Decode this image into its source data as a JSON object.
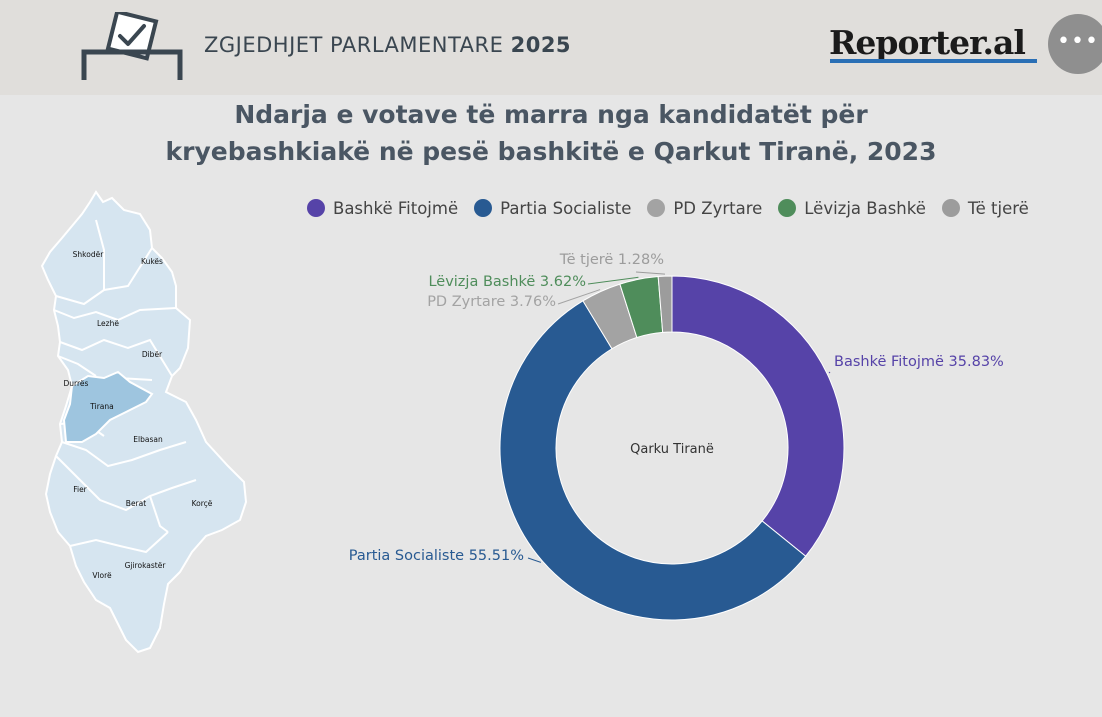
{
  "header": {
    "title_regular": "ZGJEDHJET PARLAMENTARE",
    "title_bold": "2025",
    "logo": "Reporter.al"
  },
  "title_line1": "Ndarja e votave të marra nga kandidatët për",
  "title_line2": "kryebashkiakë në pesë bashkitë e Qarkut Tiranë, 2023",
  "map": {
    "regions": [
      "Shkodër",
      "Kukës",
      "Lezhë",
      "Dibër",
      "Durrës",
      "Tirana",
      "Elbasan",
      "Fier",
      "Berat",
      "Korçë",
      "Gjirokastër",
      "Vlorë"
    ],
    "highlighted": "Tirana",
    "colors": {
      "base": "#d6e5f0",
      "highlight": "#9ec5df",
      "stroke": "#ffffff"
    }
  },
  "chart_data": {
    "type": "pie",
    "style": "donut",
    "center_label": "Qarku Tiranë",
    "legend_placement": "top",
    "slices": [
      {
        "name": "Bashkë Fitojmë",
        "value": 35.83,
        "label": "Bashkë Fitojmë 35.83%",
        "color": "#5643a8"
      },
      {
        "name": "Partia Socialiste",
        "value": 55.51,
        "label": "Partia Socialiste 55.51%",
        "color": "#285a92"
      },
      {
        "name": "PD Zyrtare",
        "value": 3.76,
        "label": "PD Zyrtare 3.76%",
        "color": "#a3a3a3"
      },
      {
        "name": "Lëvizja Bashkë",
        "value": 3.62,
        "label": "Lëvizja Bashkë 3.62%",
        "color": "#4f8d5b"
      },
      {
        "name": "Të tjerë",
        "value": 1.28,
        "label": "Të tjerë 1.28%",
        "color": "#9c9c9c"
      }
    ]
  }
}
